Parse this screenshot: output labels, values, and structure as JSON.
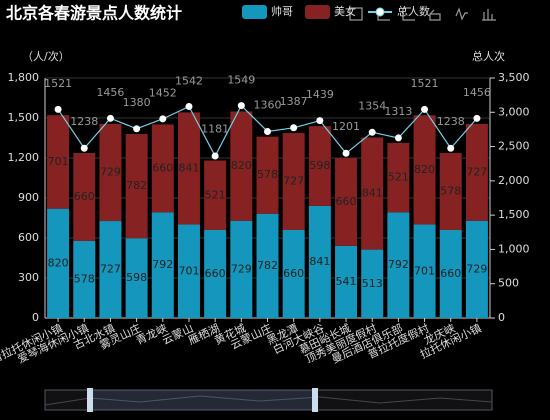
{
  "chart_data": {
    "type": "bar",
    "title": "北京各春游景点人数统计",
    "categories": [
      "普拉托休闲小镇",
      "爱琴海休闲小镇",
      "古北水镇",
      "雾灵山庄",
      "青龙峡",
      "云蒙山",
      "雁栖湖",
      "黄花城",
      "云蒙山庄",
      "黑龙潭",
      "白河大峡谷",
      "慕田峪长城",
      "顶秀美丽度假村",
      "曼后酒店俱乐部",
      "普拉托度假村",
      "龙庆峡",
      "拉托休闲小镇"
    ],
    "series": [
      {
        "name": "帅哥",
        "color": "#1597bd",
        "values": [
          820,
          578,
          727,
          598,
          792,
          701,
          660,
          729,
          782,
          660,
          841,
          541,
          513,
          792,
          701,
          660,
          729
        ]
      },
      {
        "name": "美女",
        "color": "#862222",
        "values": [
          701,
          660,
          729,
          782,
          660,
          841,
          521,
          820,
          578,
          727,
          598,
          660,
          841,
          521,
          820,
          578,
          727
        ]
      },
      {
        "name": "总人数",
        "type": "line",
        "axis": "y2",
        "color": "#6fd0e8",
        "values": [
          3042,
          2476,
          2912,
          2760,
          2904,
          3084,
          2362,
          3098,
          2720,
          2774,
          2878,
          2402,
          2708,
          2626,
          3042,
          2476,
          2912
        ]
      }
    ],
    "bar_totals": [
      1521,
      1238,
      1456,
      1380,
      1452,
      1542,
      1181,
      1549,
      1360,
      1387,
      1439,
      1201,
      1354,
      1313,
      1521,
      1238,
      1456
    ],
    "yaxis_label": "（人/次）",
    "y2axis_label": "总人次",
    "ylim": [
      0,
      1800
    ],
    "yticks": [
      0,
      300,
      600,
      900,
      {
        "value": 1200,
        "label": "1,200"
      },
      {
        "value": 1500,
        "label": "1,500"
      },
      {
        "value": 1800,
        "label": "1,800"
      }
    ],
    "y2lim": [
      0,
      3500
    ],
    "y2ticks": [
      0,
      500,
      {
        "value": 1000,
        "label": "1,000"
      },
      {
        "value": 1500,
        "label": "1,500"
      },
      {
        "value": 2000,
        "label": "2,000"
      },
      {
        "value": 2500,
        "label": "2,500"
      },
      {
        "value": 3000,
        "label": "3,000"
      },
      {
        "value": 3500,
        "label": "3,500"
      }
    ]
  }
}
